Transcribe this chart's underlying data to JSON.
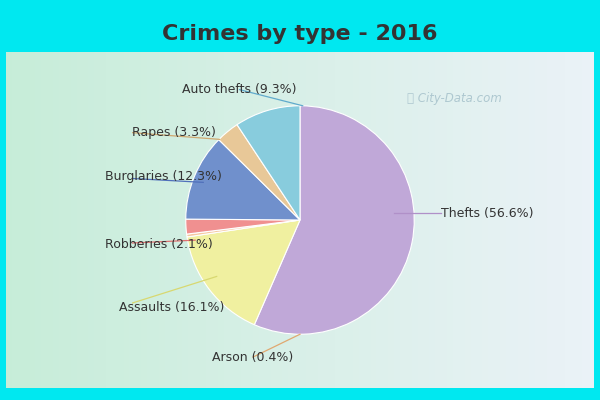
{
  "title": "Crimes by type - 2016",
  "labels": [
    "Thefts",
    "Assaults",
    "Arson",
    "Robberies",
    "Burglaries",
    "Rapes",
    "Auto thefts"
  ],
  "display_labels": [
    "Thefts (56.6%)",
    "Assaults (16.1%)",
    "Arson (0.4%)",
    "Robberies (2.1%)",
    "Burglaries (12.3%)",
    "Rapes (3.3%)",
    "Auto thefts (9.3%)"
  ],
  "values": [
    56.6,
    16.1,
    0.4,
    2.1,
    12.3,
    3.3,
    9.3
  ],
  "colors": [
    "#c0a8d8",
    "#f0f0a0",
    "#f5c8a0",
    "#f09090",
    "#7090cc",
    "#e8c898",
    "#88ccdd"
  ],
  "line_colors": [
    "#b090c8",
    "#d8d870",
    "#e0a870",
    "#e07070",
    "#5070bb",
    "#d0a870",
    "#60aacc"
  ],
  "bg_cyan": "#00e8f0",
  "bg_grad_top": "#c8e8d8",
  "bg_grad_bottom": "#d8f0e8",
  "title_color": "#333333",
  "title_fontsize": 16,
  "label_fontsize": 9,
  "watermark": "City-Data.com",
  "startangle": 90
}
